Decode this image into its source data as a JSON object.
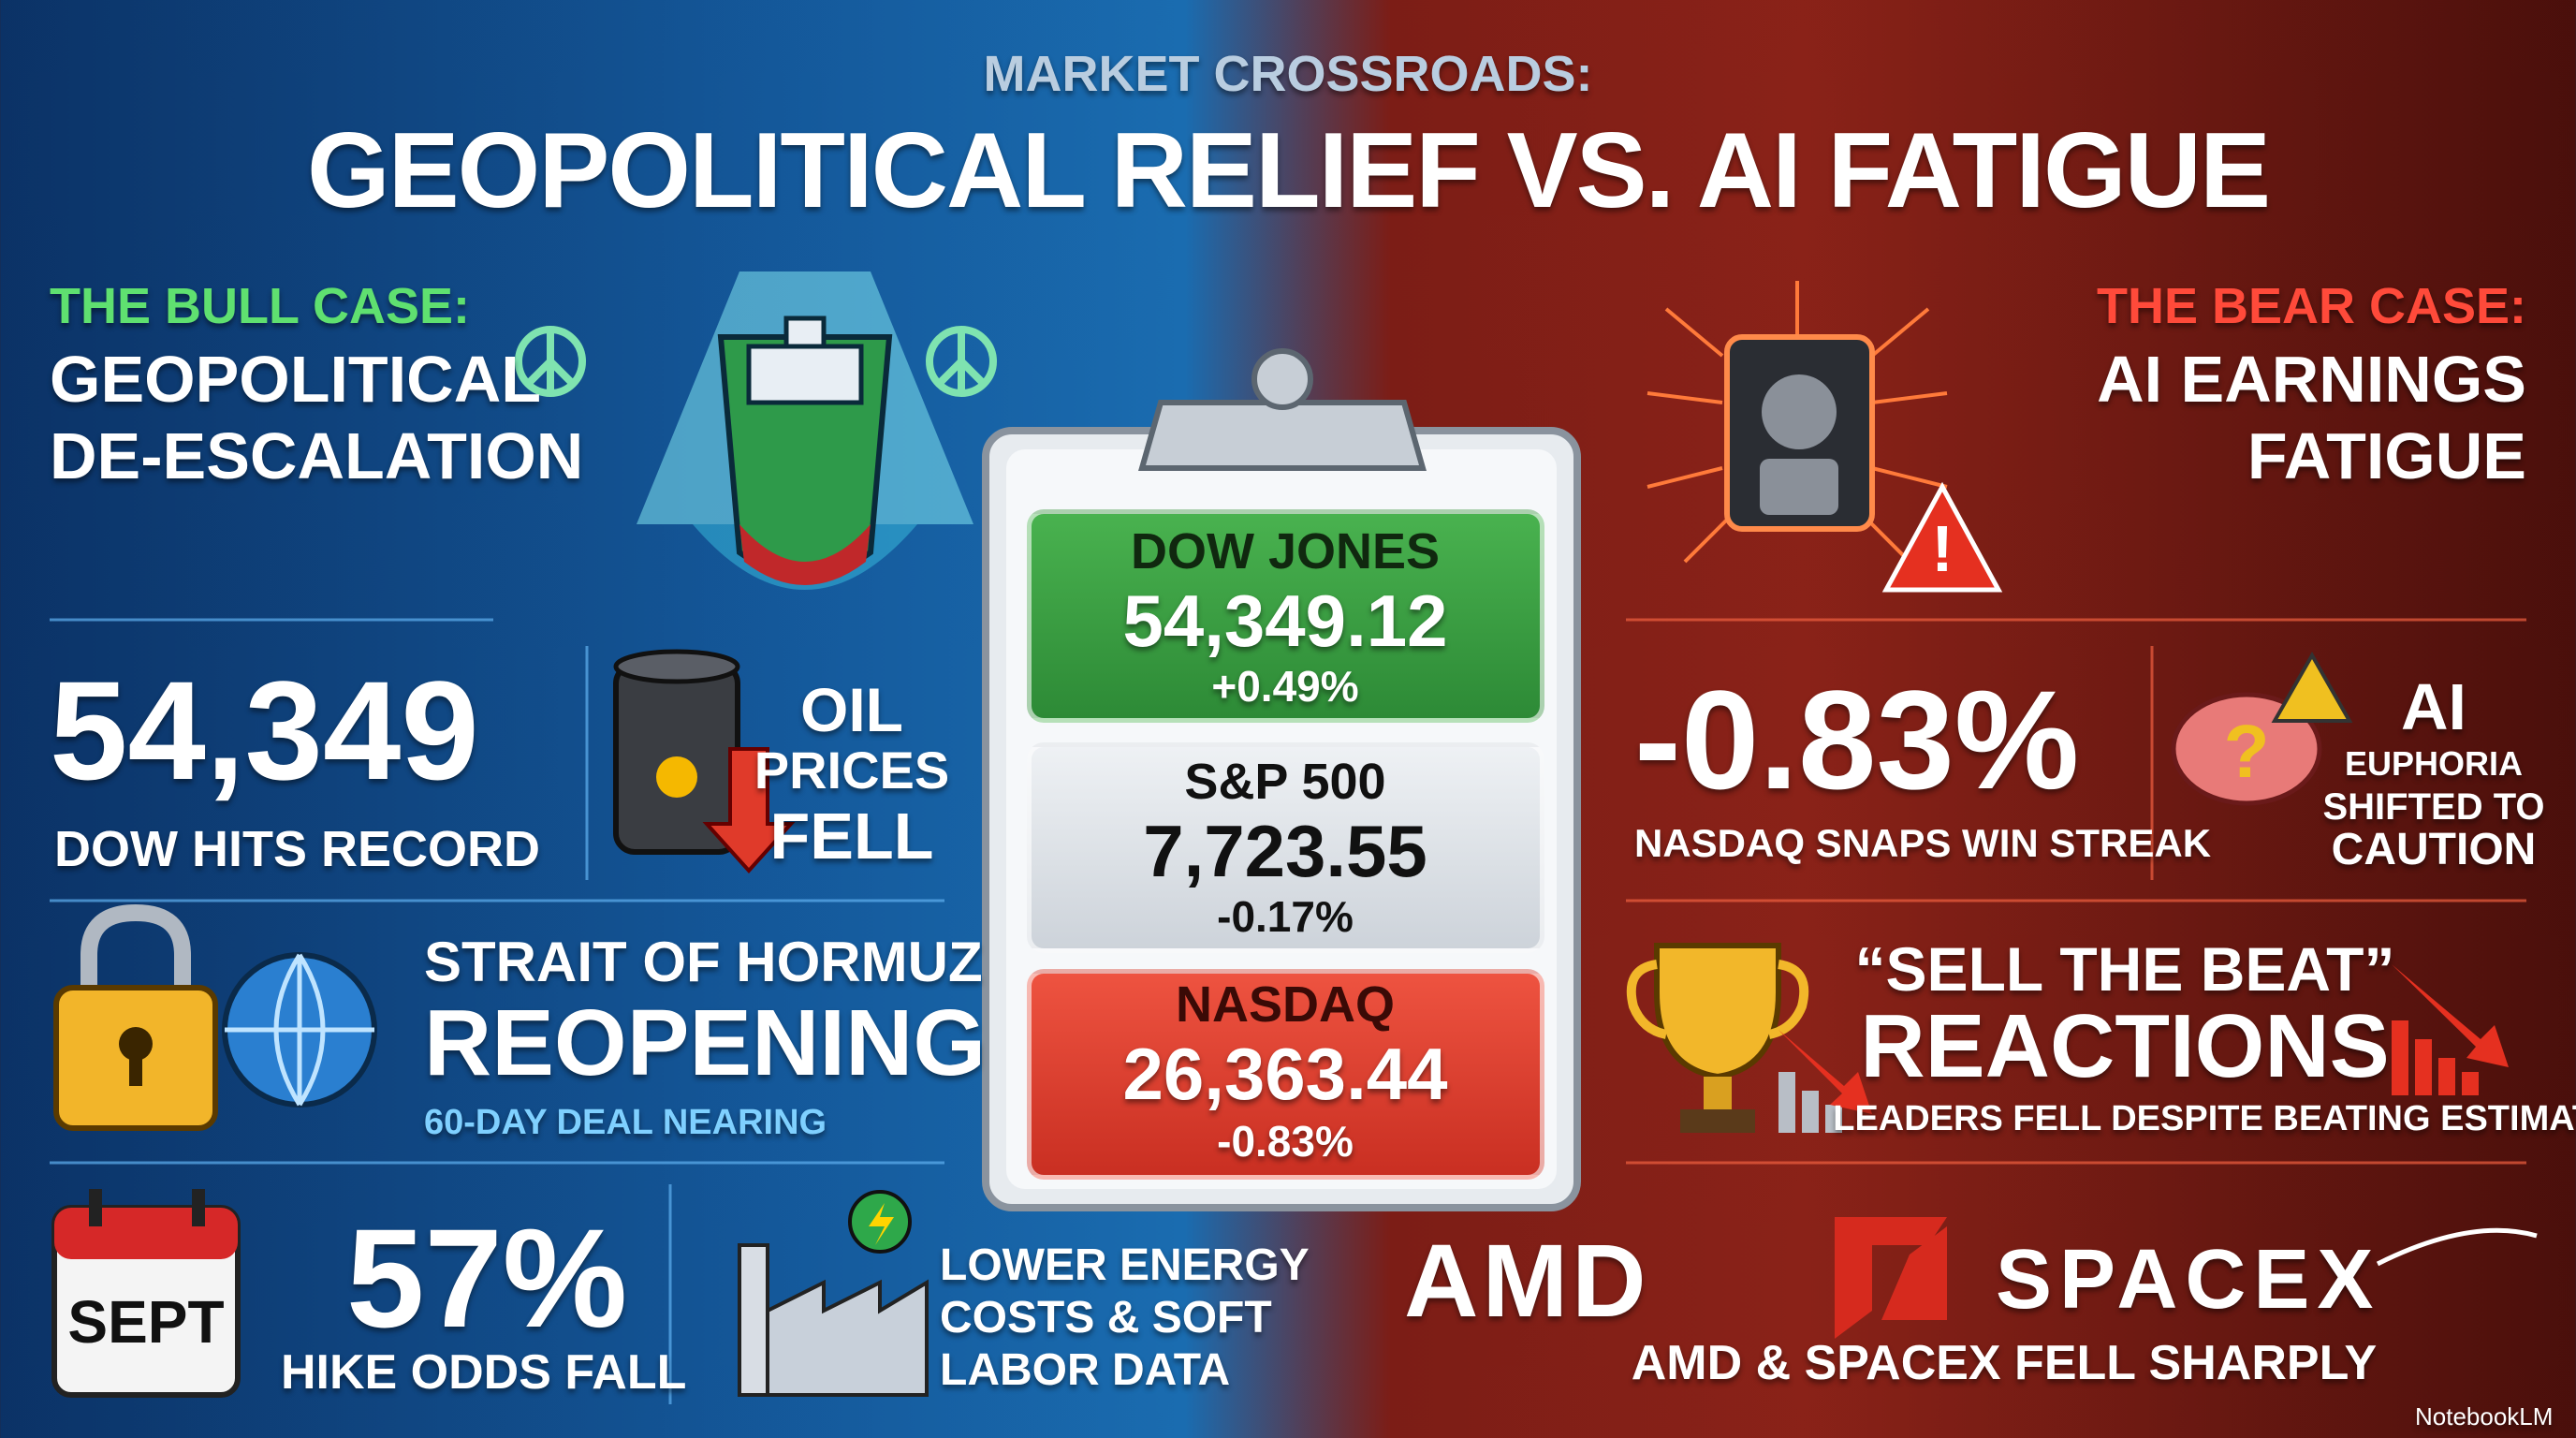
{
  "header": {
    "kicker": "MARKET CROSSROADS:",
    "title": "GEOPOLITICAL RELIEF VS. AI FATIGUE"
  },
  "bull": {
    "label": "THE BULL CASE:",
    "title": [
      "GEOPOLITICAL",
      "DE-ESCALATION"
    ],
    "dow": {
      "value": "54,349",
      "caption": "DOW HITS RECORD"
    },
    "oil": [
      "OIL",
      "PRICES",
      "FELL"
    ],
    "hormuz": {
      "title": [
        "STRAIT OF HORMUZ",
        "REOPENING"
      ],
      "subtitle": "60-DAY DEAL NEARING"
    },
    "fed": {
      "calendar": "SEPT",
      "value": "57%",
      "caption": "HIKE ODDS FALL"
    },
    "energy": [
      "LOWER ENERGY",
      "COSTS & SOFT",
      "LABOR DATA"
    ]
  },
  "board": {
    "indices": [
      {
        "name": "DOW JONES",
        "value": "54,349.12",
        "change": "+0.49%"
      },
      {
        "name": "S&P 500",
        "value": "7,723.55",
        "change": "-0.17%"
      },
      {
        "name": "NASDAQ",
        "value": "26,363.44",
        "change": "-0.83%"
      }
    ]
  },
  "bear": {
    "label": "THE BEAR CASE:",
    "title": [
      "AI EARNINGS",
      "FATIGUE"
    ],
    "nasdaq": {
      "value": "-0.83%",
      "caption": "NASDAQ SNAPS WIN STREAK"
    },
    "ai": [
      "AI",
      "EUPHORIA",
      "SHIFTED TO",
      "CAUTION"
    ],
    "sell": {
      "title": [
        "“SELL THE BEAT”",
        "REACTIONS"
      ],
      "subtitle": "LEADERS FELL DESPITE BEATING ESTIMATES"
    },
    "logos": [
      "AMD",
      "SPACEX"
    ],
    "caption": "AMD & SPACEX FELL SHARPLY"
  },
  "footer": {
    "brand": "NotebookLM"
  }
}
